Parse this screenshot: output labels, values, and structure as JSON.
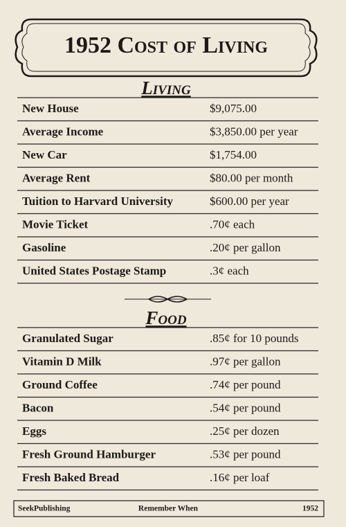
{
  "title": "1952 Cost of Living",
  "sections": [
    {
      "heading": "Living",
      "rows": [
        [
          "New House",
          "$9,075.00"
        ],
        [
          "Average Income",
          "$3,850.00 per year"
        ],
        [
          "New Car",
          "$1,754.00"
        ],
        [
          "Average Rent",
          "$80.00 per month"
        ],
        [
          "Tuition to Harvard University",
          "$600.00 per year"
        ],
        [
          "Movie Ticket",
          ".70¢ each"
        ],
        [
          "Gasoline",
          ".20¢ per gallon"
        ],
        [
          "United States Postage Stamp",
          ".3¢ each"
        ]
      ]
    },
    {
      "heading": "Food",
      "rows": [
        [
          "Granulated Sugar",
          ".85¢ for 10 pounds"
        ],
        [
          "Vitamin D  Milk",
          ".97¢ per gallon"
        ],
        [
          "Ground Coffee",
          ".74¢ per pound"
        ],
        [
          "Bacon",
          ".54¢ per pound"
        ],
        [
          "Eggs",
          ".25¢ per dozen"
        ],
        [
          "Fresh Ground Hamburger",
          ".53¢ per pound"
        ],
        [
          "Fresh Baked Bread",
          ".16¢ per loaf"
        ]
      ]
    }
  ],
  "footer": {
    "publisher": "SeekPublishing",
    "series": "Remember When",
    "year": "1952"
  }
}
